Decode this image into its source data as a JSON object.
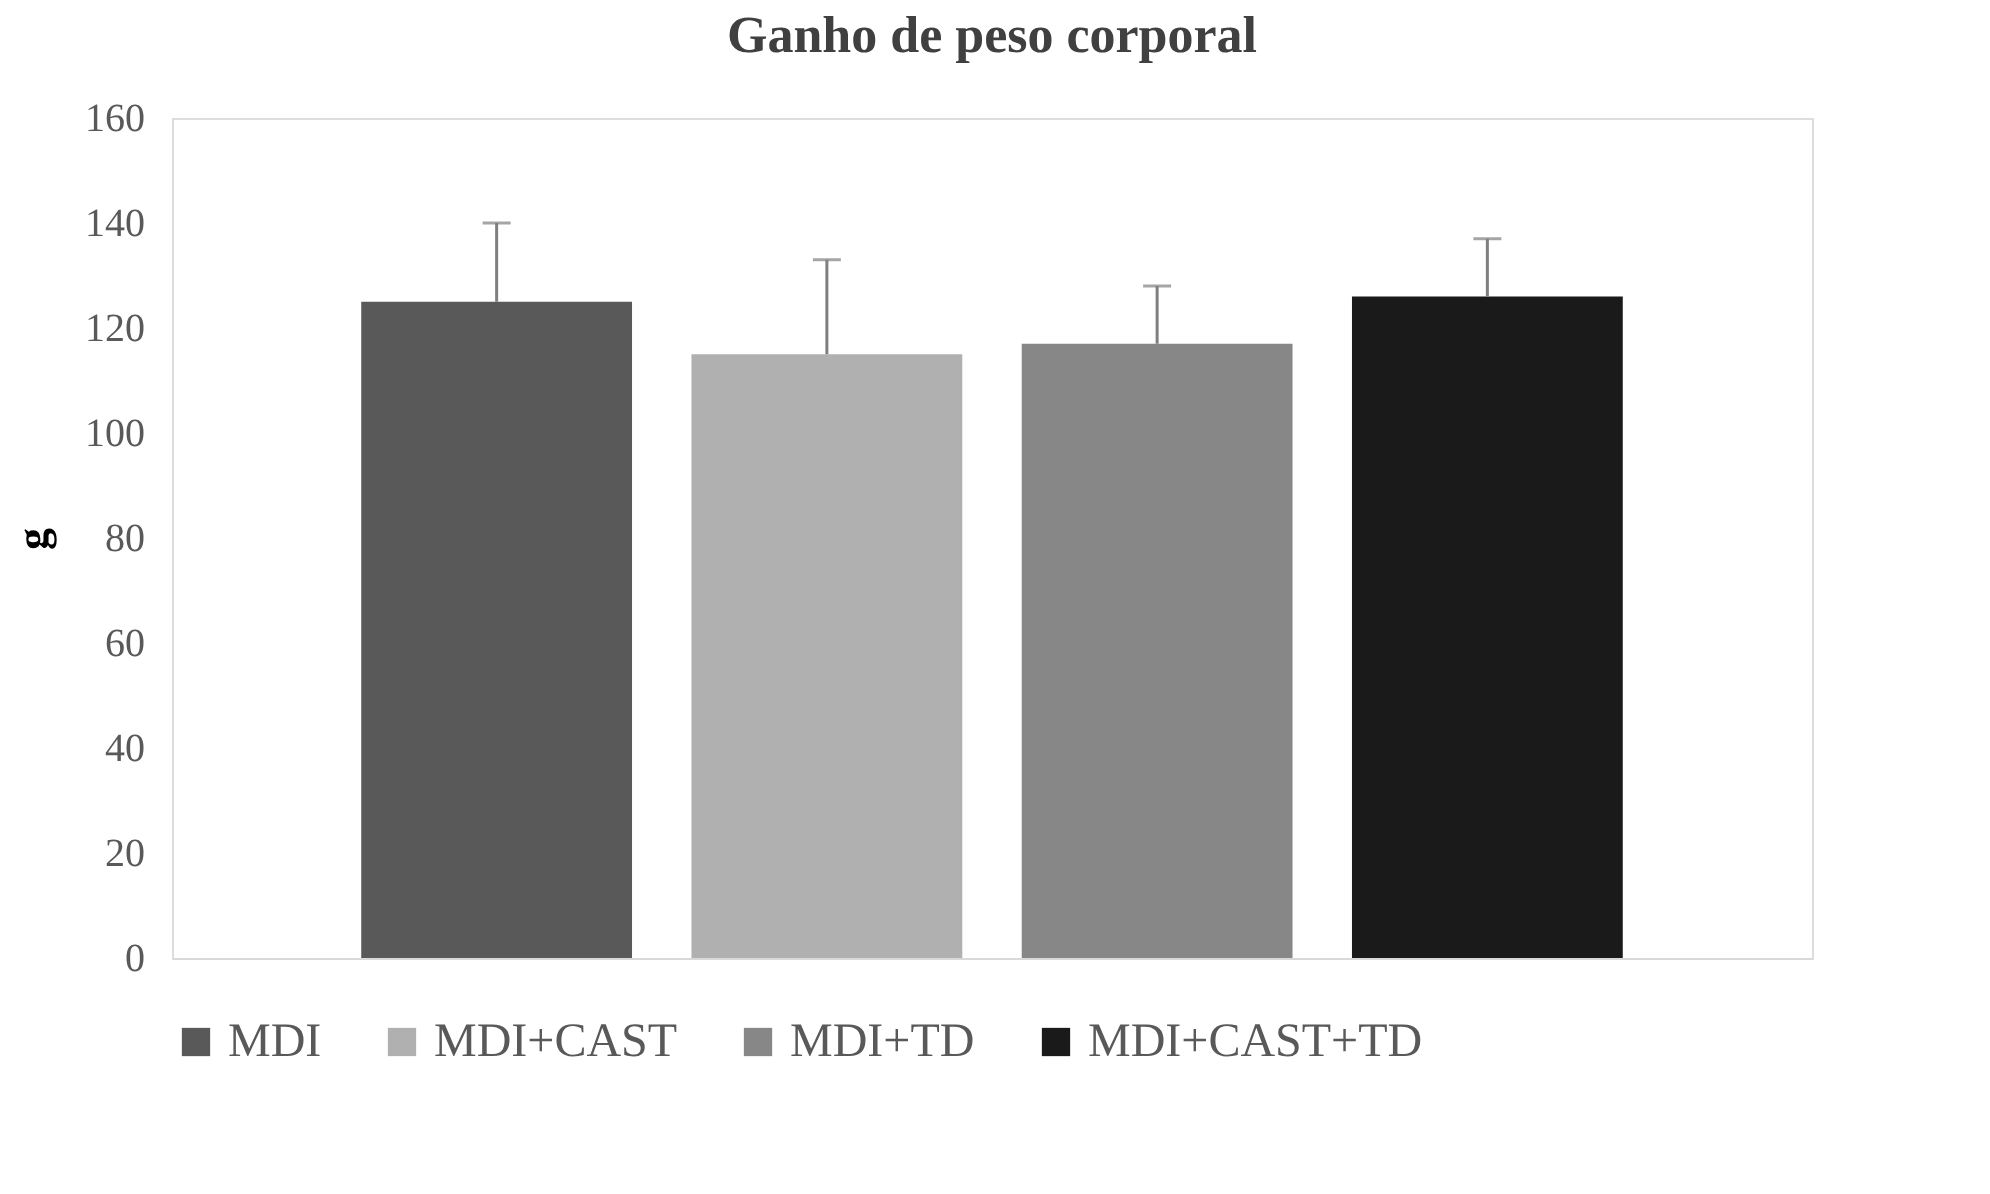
{
  "chart_data": {
    "type": "bar",
    "title": "Ganho de peso corporal",
    "ylabel": "g",
    "categories": [
      null
    ],
    "series": [
      {
        "name": "MDI",
        "color": "#595959",
        "values": [
          125
        ],
        "errors": [
          [
            125,
            140
          ]
        ]
      },
      {
        "name": "MDI+CAST",
        "color": "#b0b0b0",
        "values": [
          115
        ],
        "errors": [
          [
            115,
            133
          ]
        ]
      },
      {
        "name": "MDI+TD",
        "color": "#878787",
        "values": [
          117
        ],
        "errors": [
          [
            117,
            128
          ]
        ]
      },
      {
        "name": "MDI+CAST+TD",
        "color": "#1a1a1a",
        "values": [
          126
        ],
        "errors": [
          [
            126,
            137
          ]
        ]
      }
    ],
    "ylim": [
      0,
      160
    ],
    "yticks": [
      0,
      20,
      40,
      60,
      80,
      100,
      120,
      140,
      160
    ],
    "grid": false,
    "legend": "bottom",
    "tick_labels": "y"
  }
}
